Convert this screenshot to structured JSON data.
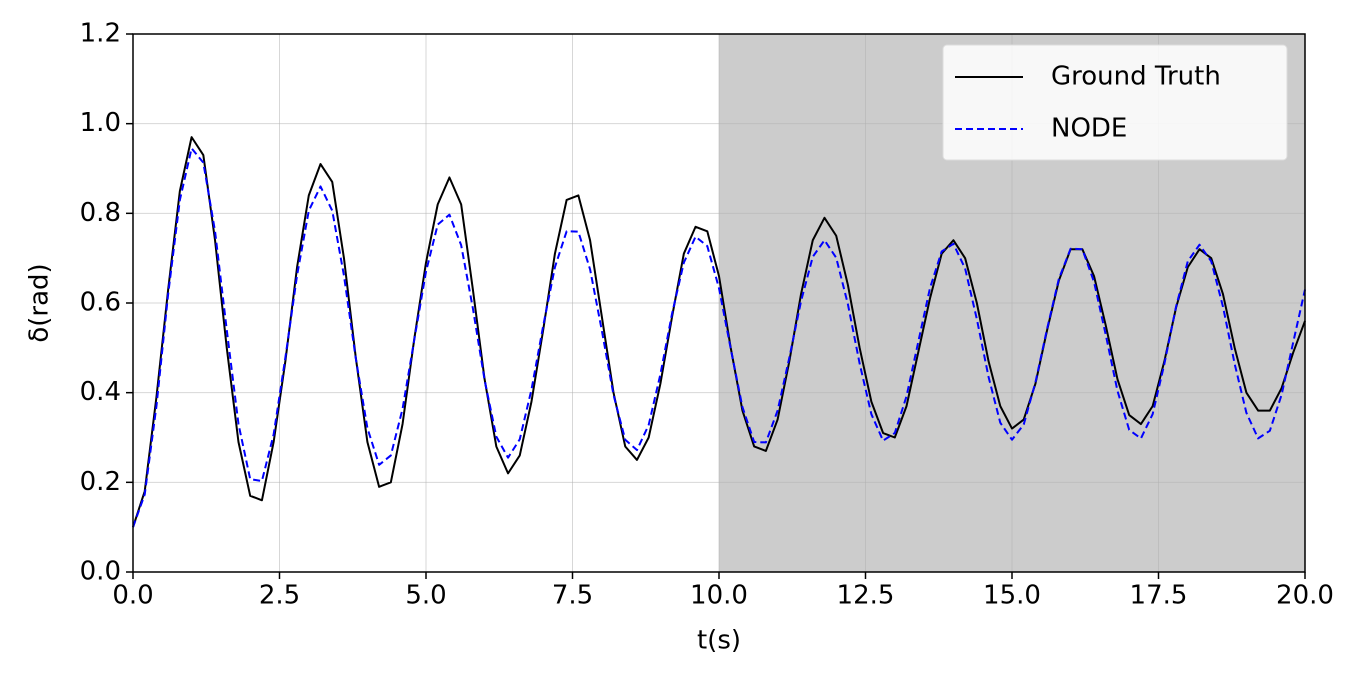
{
  "chart_data": {
    "type": "line",
    "xlabel": "t(s)",
    "ylabel": "δ(rad)",
    "xlim": [
      0,
      20
    ],
    "ylim": [
      0,
      1.2
    ],
    "xticks": [
      {
        "value": 0,
        "label": "0.0"
      },
      2.5,
      {
        "value": 5,
        "label": "5.0"
      },
      7.5,
      {
        "value": 10,
        "label": "10.0"
      },
      12.5,
      {
        "value": 15,
        "label": "15.0"
      },
      17.5,
      {
        "value": 20,
        "label": "20.0"
      }
    ],
    "yticks": [
      {
        "value": 0,
        "label": "0.0"
      },
      0.2,
      0.4,
      0.6,
      0.8,
      {
        "value": 1,
        "label": "1.0"
      },
      1.2
    ],
    "grid": true,
    "legend": "upper right",
    "shaded_xrange": [
      10,
      20
    ],
    "shade_color": "#cccccc",
    "x": [
      0,
      0.2,
      0.4,
      0.6,
      0.8,
      1,
      1.2,
      1.4,
      1.6,
      1.8,
      2,
      2.2,
      2.4,
      2.6,
      2.8,
      3,
      3.2,
      3.4,
      3.6,
      3.8,
      4,
      4.2,
      4.4,
      4.6,
      4.8,
      5,
      5.2,
      5.4,
      5.6,
      5.8,
      6,
      6.2,
      6.4,
      6.6,
      6.8,
      7,
      7.2,
      7.4,
      7.6,
      7.8,
      8,
      8.2,
      8.4,
      8.6,
      8.8,
      9,
      9.2,
      9.4,
      9.6,
      9.8,
      10,
      10.2,
      10.4,
      10.6,
      10.8,
      11,
      11.2,
      11.4,
      11.6,
      11.8,
      12,
      12.2,
      12.4,
      12.6,
      12.8,
      13,
      13.2,
      13.4,
      13.6,
      13.8,
      14,
      14.2,
      14.4,
      14.6,
      14.8,
      15,
      15.2,
      15.4,
      15.6,
      15.8,
      16,
      16.2,
      16.4,
      16.6,
      16.8,
      17,
      17.2,
      17.4,
      17.6,
      17.8,
      18,
      18.2,
      18.4,
      18.6,
      18.8,
      19,
      19.2,
      19.4,
      19.6,
      19.8,
      20
    ],
    "series": [
      {
        "name": "Ground Truth",
        "color": "#000000",
        "dash": false,
        "values": [
          0.1,
          0.18,
          0.39,
          0.63,
          0.85,
          0.97,
          0.93,
          0.74,
          0.5,
          0.29,
          0.17,
          0.16,
          0.29,
          0.47,
          0.68,
          0.84,
          0.91,
          0.87,
          0.7,
          0.48,
          0.29,
          0.19,
          0.2,
          0.33,
          0.52,
          0.69,
          0.82,
          0.88,
          0.82,
          0.63,
          0.43,
          0.28,
          0.22,
          0.26,
          0.38,
          0.54,
          0.71,
          0.83,
          0.84,
          0.74,
          0.57,
          0.4,
          0.28,
          0.25,
          0.3,
          0.42,
          0.57,
          0.71,
          0.77,
          0.76,
          0.66,
          0.5,
          0.36,
          0.28,
          0.27,
          0.34,
          0.47,
          0.62,
          0.74,
          0.79,
          0.75,
          0.64,
          0.5,
          0.38,
          0.31,
          0.3,
          0.37,
          0.49,
          0.61,
          0.71,
          0.74,
          0.7,
          0.6,
          0.47,
          0.37,
          0.32,
          0.34,
          0.42,
          0.54,
          0.65,
          0.72,
          0.72,
          0.66,
          0.55,
          0.43,
          0.35,
          0.33,
          0.37,
          0.47,
          0.59,
          0.68,
          0.72,
          0.7,
          0.62,
          0.5,
          0.4,
          0.36,
          0.36,
          0.41,
          0.49,
          0.56
        ]
      },
      {
        "name": "NODE",
        "color": "#0000ff",
        "dash": true,
        "values": [
          0.1,
          0.173,
          0.37,
          0.62,
          0.83,
          0.945,
          0.913,
          0.76,
          0.54,
          0.33,
          0.207,
          0.203,
          0.307,
          0.478,
          0.662,
          0.806,
          0.86,
          0.806,
          0.661,
          0.478,
          0.321,
          0.239,
          0.26,
          0.364,
          0.518,
          0.67,
          0.775,
          0.797,
          0.729,
          0.588,
          0.428,
          0.302,
          0.255,
          0.296,
          0.407,
          0.549,
          0.68,
          0.76,
          0.759,
          0.675,
          0.539,
          0.395,
          0.295,
          0.272,
          0.328,
          0.441,
          0.577,
          0.69,
          0.748,
          0.727,
          0.633,
          0.498,
          0.368,
          0.29,
          0.289,
          0.36,
          0.478,
          0.604,
          0.703,
          0.74,
          0.701,
          0.597,
          0.465,
          0.352,
          0.293,
          0.31,
          0.392,
          0.513,
          0.633,
          0.715,
          0.732,
          0.677,
          0.564,
          0.435,
          0.333,
          0.295,
          0.329,
          0.423,
          0.543,
          0.654,
          0.721,
          0.72,
          0.647,
          0.529,
          0.404,
          0.317,
          0.298,
          0.352,
          0.464,
          0.592,
          0.693,
          0.73,
          0.693,
          0.592,
          0.464,
          0.355,
          0.298,
          0.315,
          0.395,
          0.513,
          0.63
        ]
      }
    ]
  }
}
